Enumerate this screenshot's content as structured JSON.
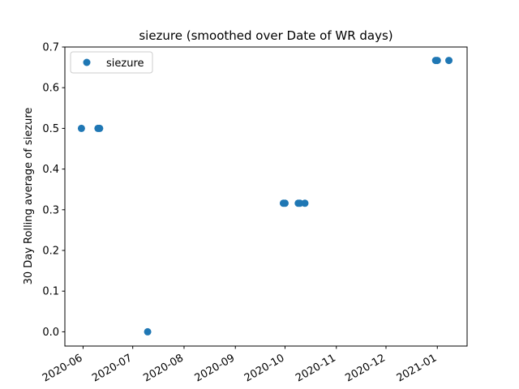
{
  "chart_data": {
    "type": "scatter",
    "title": "siezure (smoothed over Date of WR days)",
    "xlabel": "",
    "ylabel": "30 Day Rolling average of siezure",
    "xlim": [
      "2020-05-21",
      "2021-01-19"
    ],
    "ylim": [
      -0.035,
      0.7
    ],
    "x_ticks": [
      "2020-06",
      "2020-07",
      "2020-08",
      "2020-09",
      "2020-10",
      "2020-11",
      "2020-12",
      "2021-01"
    ],
    "y_ticks": [
      "0.0",
      "0.1",
      "0.2",
      "0.3",
      "0.4",
      "0.5",
      "0.6",
      "0.7"
    ],
    "grid": false,
    "legend": {
      "position": "top-left"
    },
    "series": [
      {
        "name": "siezure",
        "color": "#1f77b4",
        "marker": "circle",
        "points": [
          {
            "x": "2020-05-31",
            "y": 0.5
          },
          {
            "x": "2020-06-10",
            "y": 0.5
          },
          {
            "x": "2020-06-11",
            "y": 0.5
          },
          {
            "x": "2020-07-10",
            "y": 0.0
          },
          {
            "x": "2020-09-30",
            "y": 0.316
          },
          {
            "x": "2020-10-01",
            "y": 0.316
          },
          {
            "x": "2020-10-09",
            "y": 0.316
          },
          {
            "x": "2020-10-10",
            "y": 0.316
          },
          {
            "x": "2020-10-13",
            "y": 0.316
          },
          {
            "x": "2020-12-31",
            "y": 0.667
          },
          {
            "x": "2021-01-01",
            "y": 0.667
          },
          {
            "x": "2021-01-08",
            "y": 0.667
          }
        ]
      }
    ]
  }
}
